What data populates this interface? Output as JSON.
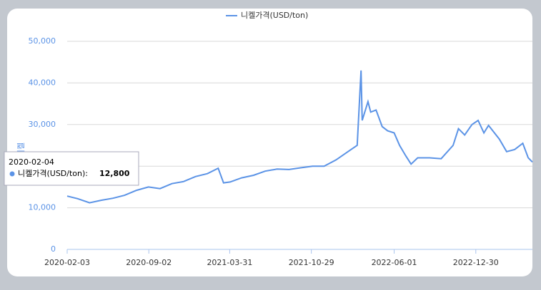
{
  "chart_data": {
    "type": "line",
    "legend": "top",
    "grid": true,
    "y_label": "니켈",
    "x": [
      "2020-02-03",
      "2020-03-01",
      "2020-04-01",
      "2020-05-01",
      "2020-06-01",
      "2020-07-01",
      "2020-08-01",
      "2020-09-01",
      "2020-10-01",
      "2020-11-01",
      "2020-12-01",
      "2021-01-01",
      "2021-02-01",
      "2021-03-01",
      "2021-03-15",
      "2021-04-01",
      "2021-05-01",
      "2021-06-01",
      "2021-07-01",
      "2021-08-01",
      "2021-09-01",
      "2021-10-01",
      "2021-11-01",
      "2021-12-01",
      "2022-01-01",
      "2022-02-01",
      "2022-02-25",
      "2022-03-07",
      "2022-03-10",
      "2022-03-25",
      "2022-04-01",
      "2022-04-15",
      "2022-05-01",
      "2022-05-15",
      "2022-06-01",
      "2022-06-15",
      "2022-07-01",
      "2022-07-15",
      "2022-08-01",
      "2022-09-01",
      "2022-10-01",
      "2022-11-01",
      "2022-11-15",
      "2022-12-01",
      "2022-12-20",
      "2023-01-05",
      "2023-01-20",
      "2023-02-01",
      "2023-03-01",
      "2023-03-20",
      "2023-04-10",
      "2023-05-01",
      "2023-05-15",
      "2023-05-26"
    ],
    "series": [
      {
        "name": "니켈가격(USD/ton)",
        "color": "#5b93e6",
        "values": [
          12800,
          12200,
          11200,
          11800,
          12300,
          13000,
          14200,
          15000,
          14600,
          15800,
          16300,
          17500,
          18200,
          19500,
          16000,
          16200,
          17200,
          17800,
          18800,
          19300,
          19200,
          19600,
          20000,
          20000,
          21500,
          23500,
          25000,
          43000,
          31000,
          35500,
          33000,
          33500,
          29500,
          28500,
          28000,
          25000,
          22500,
          20500,
          22000,
          22000,
          21800,
          25000,
          29000,
          27500,
          30000,
          31000,
          28000,
          29800,
          26500,
          23500,
          24000,
          25500,
          22000,
          21000
        ]
      }
    ],
    "xlim": [
      "2020-02-03",
      "2023-05-26"
    ],
    "xticks": [
      "2020-02-03",
      "2020-09-02",
      "2021-03-31",
      "2021-10-29",
      "2022-06-01",
      "2022-12-30"
    ],
    "ylim": [
      0,
      50000
    ],
    "yticks": [
      0,
      {
        "value": 10000,
        "label": "10,000"
      },
      {
        "value": 20000,
        "label": "20,000"
      },
      {
        "value": 30000,
        "label": "30,000"
      },
      {
        "value": 40000,
        "label": "40,000"
      },
      {
        "value": 50000,
        "label": "50,000"
      }
    ]
  },
  "tooltip": {
    "title": "2020-02-04",
    "label": "니켈가격(USD/ton):",
    "value": "12,800"
  }
}
